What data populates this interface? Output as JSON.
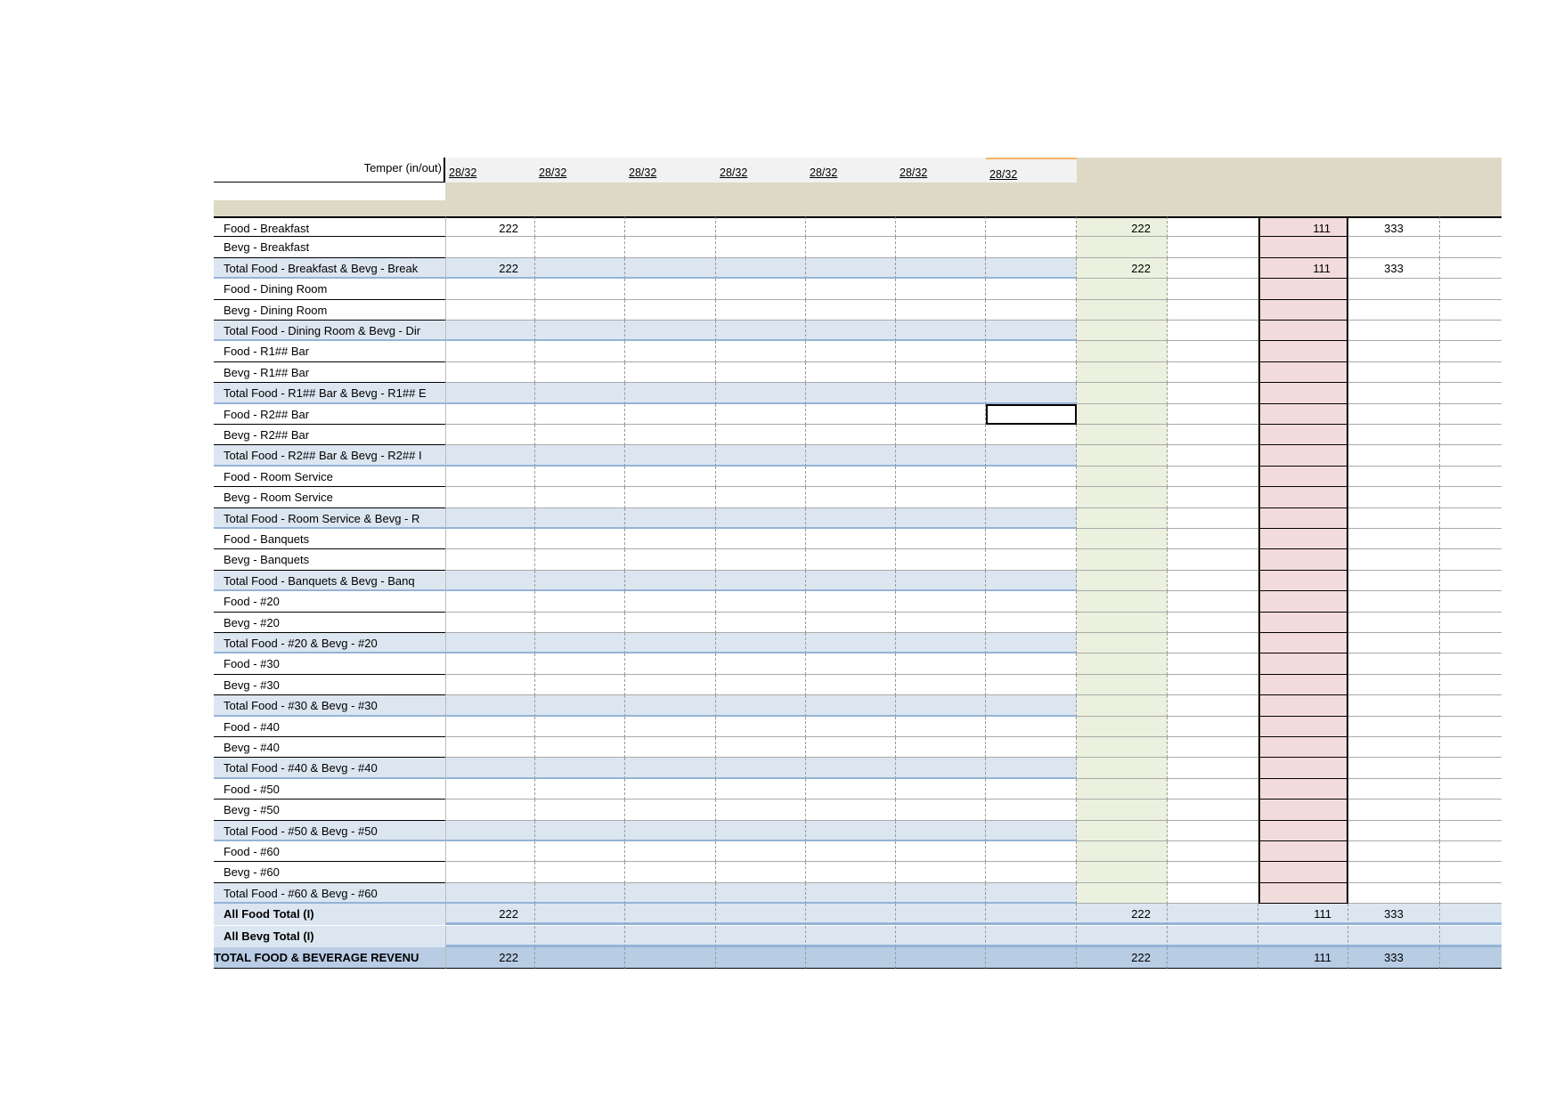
{
  "header": {
    "temper_label": "Temper (in/out)",
    "dates": [
      "28/32",
      "28/32",
      "28/32",
      "28/32",
      "28/32",
      "28/32",
      "28/32"
    ]
  },
  "rows": [
    {
      "label": "Food - Breakfast",
      "type": "item",
      "values": {
        "c1": "222",
        "c8": "222",
        "c10": "111",
        "c11": "333"
      }
    },
    {
      "label": "Bevg - Breakfast",
      "type": "item",
      "values": {}
    },
    {
      "label": "Total   Food - Breakfast & Bevg - Break",
      "type": "total",
      "values": {
        "c1": "222",
        "c8": "222",
        "c10": "111",
        "c11": "333"
      }
    },
    {
      "label": "Food - Dining Room",
      "type": "item",
      "values": {}
    },
    {
      "label": "Bevg - Dining Room",
      "type": "item",
      "values": {}
    },
    {
      "label": "Total   Food - Dining Room & Bevg - Dir",
      "type": "total",
      "values": {}
    },
    {
      "label": "Food - R1## Bar",
      "type": "item",
      "values": {}
    },
    {
      "label": "Bevg - R1## Bar",
      "type": "item",
      "values": {}
    },
    {
      "label": "Total   Food - R1## Bar & Bevg - R1## E",
      "type": "total",
      "values": {}
    },
    {
      "label": "Food - R2## Bar",
      "type": "item",
      "values": {},
      "selected_col": 7
    },
    {
      "label": "Bevg - R2## Bar",
      "type": "item",
      "values": {}
    },
    {
      "label": "Total   Food - R2## Bar & Bevg - R2## I",
      "type": "total",
      "values": {}
    },
    {
      "label": "Food - Room Service",
      "type": "item",
      "values": {}
    },
    {
      "label": "Bevg - Room Service",
      "type": "item",
      "values": {}
    },
    {
      "label": "Total   Food - Room Service & Bevg - R",
      "type": "total",
      "values": {}
    },
    {
      "label": "Food - Banquets",
      "type": "item",
      "values": {}
    },
    {
      "label": "Bevg - Banquets",
      "type": "item",
      "values": {}
    },
    {
      "label": "Total   Food - Banquets & Bevg - Banq",
      "type": "total",
      "values": {}
    },
    {
      "label": "Food - #20",
      "type": "item",
      "values": {}
    },
    {
      "label": "Bevg - #20",
      "type": "item",
      "values": {}
    },
    {
      "label": "Total   Food - #20 & Bevg - #20",
      "type": "total",
      "values": {}
    },
    {
      "label": "Food - #30",
      "type": "item",
      "values": {}
    },
    {
      "label": "Bevg - #30",
      "type": "item",
      "values": {}
    },
    {
      "label": "Total   Food - #30 & Bevg - #30",
      "type": "total",
      "values": {}
    },
    {
      "label": "Food - #40",
      "type": "item",
      "values": {}
    },
    {
      "label": "Bevg - #40",
      "type": "item",
      "values": {}
    },
    {
      "label": "Total   Food - #40 & Bevg - #40",
      "type": "total",
      "values": {}
    },
    {
      "label": "Food - #50",
      "type": "item",
      "values": {}
    },
    {
      "label": "Bevg - #50",
      "type": "item",
      "values": {}
    },
    {
      "label": "Total   Food - #50 & Bevg - #50",
      "type": "total",
      "values": {}
    },
    {
      "label": "Food - #60",
      "type": "item",
      "values": {}
    },
    {
      "label": "Bevg - #60",
      "type": "item",
      "values": {}
    },
    {
      "label": "Total   Food - #60 & Bevg - #60",
      "type": "total",
      "values": {}
    },
    {
      "label": "All Food Total (I)",
      "type": "grand",
      "values": {
        "c1": "222",
        "c8": "222",
        "c10": "111",
        "c11": "333"
      }
    },
    {
      "label": "All Bevg Total (I)",
      "type": "grand",
      "values": {}
    },
    {
      "label": "TOTAL FOOD & BEVERAGE REVENU",
      "type": "final",
      "values": {
        "c1": "222",
        "c8": "222",
        "c10": "111",
        "c11": "333"
      }
    }
  ],
  "colors": {
    "header_beige": "#ddd9c4",
    "total_blue": "#dce6f1",
    "final_blue": "#b8cce4",
    "green_col": "#ebf1de",
    "pink_col": "#f2dcdb"
  }
}
